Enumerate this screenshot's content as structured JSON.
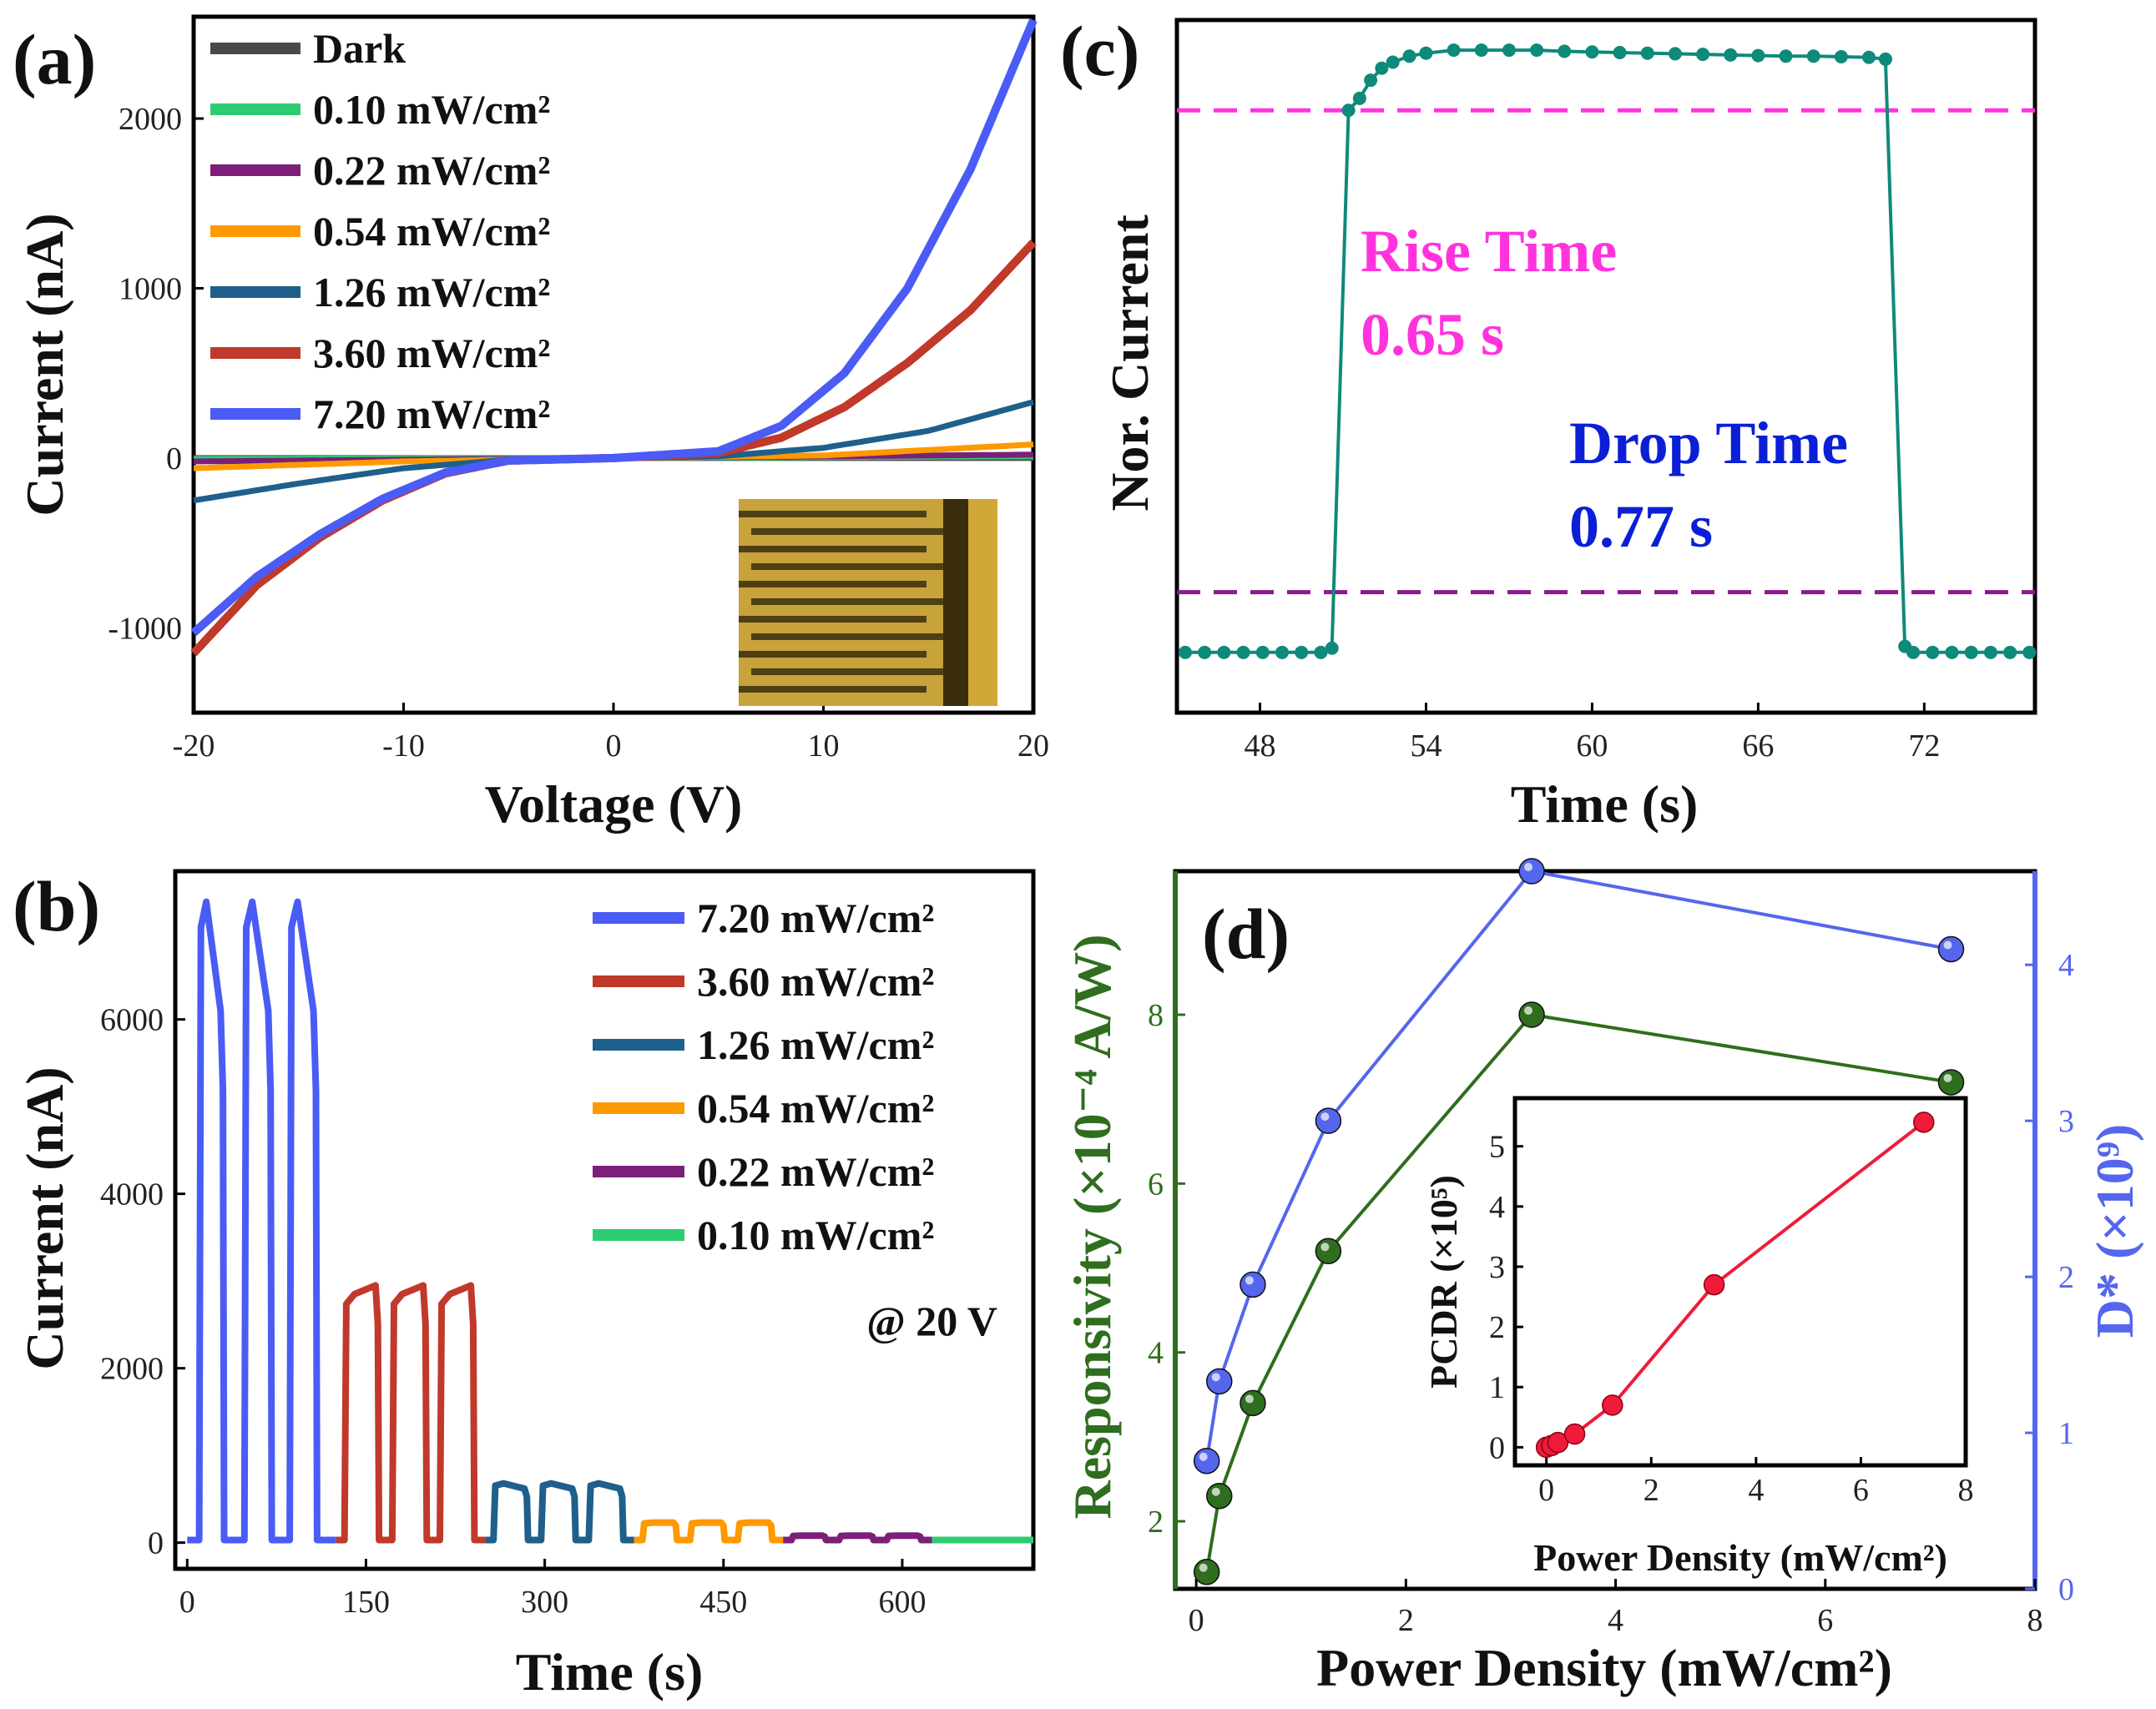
{
  "chart_data": [
    {
      "id": "a",
      "panel_label": "(a)",
      "type": "line",
      "xlabel": "Voltage (V)",
      "ylabel": "Current (nA)",
      "xlim": [
        -20,
        20
      ],
      "ylim": [
        -1500,
        2600
      ],
      "xticks": [
        "-20",
        "-10",
        "0",
        "10",
        "20"
      ],
      "yticks": [
        "-1000",
        "0",
        "1000",
        "2000"
      ],
      "legend": [
        {
          "label": "Dark",
          "color": "#4a4a4a"
        },
        {
          "label": "0.10 mW/cm²",
          "color": "#2ecc71"
        },
        {
          "label": "0.22 mW/cm²",
          "color": "#7b1f7a"
        },
        {
          "label": "0.54 mW/cm²",
          "color": "#ff9900"
        },
        {
          "label": "1.26 mW/cm²",
          "color": "#1f5f8b"
        },
        {
          "label": "3.60 mW/cm²",
          "color": "#c0392b"
        },
        {
          "label": "7.20 mW/cm²",
          "color": "#4a5cf5"
        }
      ],
      "series": [
        {
          "name": "Dark",
          "x": [
            -20,
            0,
            20
          ],
          "y": [
            0,
            0,
            0
          ]
        },
        {
          "name": "0.10 mW/cm²",
          "x": [
            -20,
            0,
            20
          ],
          "y": [
            -5,
            0,
            10
          ]
        },
        {
          "name": "0.22 mW/cm²",
          "x": [
            -20,
            0,
            20
          ],
          "y": [
            -20,
            0,
            20
          ]
        },
        {
          "name": "0.54 mW/cm²",
          "x": [
            -20,
            -10,
            0,
            10,
            20
          ],
          "y": [
            -60,
            -20,
            0,
            15,
            80
          ]
        },
        {
          "name": "1.26 mW/cm²",
          "x": [
            -20,
            -15,
            -10,
            -5,
            0,
            5,
            10,
            15,
            20
          ],
          "y": [
            -250,
            -150,
            -60,
            -10,
            0,
            10,
            60,
            160,
            330
          ]
        },
        {
          "name": "3.60 mW/cm²",
          "x": [
            -20,
            -17,
            -14,
            -11,
            -8,
            -5,
            0,
            5,
            8,
            11,
            14,
            17,
            20
          ],
          "y": [
            -1150,
            -750,
            -470,
            -250,
            -90,
            -15,
            0,
            30,
            120,
            300,
            560,
            870,
            1270
          ]
        },
        {
          "name": "7.20 mW/cm²",
          "x": [
            -20,
            -17,
            -14,
            -11,
            -8,
            -5,
            0,
            5,
            8,
            11,
            14,
            17,
            20
          ],
          "y": [
            -1030,
            -700,
            -450,
            -240,
            -85,
            -15,
            0,
            40,
            190,
            500,
            1000,
            1700,
            2580
          ]
        }
      ],
      "inset": "optical micrograph of interdigitated electrodes"
    },
    {
      "id": "b",
      "panel_label": "(b)",
      "type": "line",
      "xlabel": "Time (s)",
      "ylabel": "Current (nA)",
      "xlim": [
        -10,
        710
      ],
      "ylim": [
        -300,
        7700
      ],
      "xticks": [
        "0",
        "150",
        "300",
        "450",
        "600"
      ],
      "yticks": [
        "0",
        "2000",
        "4000",
        "6000"
      ],
      "annotation": "@ 20 V",
      "legend": [
        {
          "label": "7.20 mW/cm²",
          "color": "#4a5cf5"
        },
        {
          "label": "3.60 mW/cm²",
          "color": "#c0392b"
        },
        {
          "label": "1.26 mW/cm²",
          "color": "#1f5f8b"
        },
        {
          "label": "0.54 mW/cm²",
          "color": "#ff9900"
        },
        {
          "label": "0.22 mW/cm²",
          "color": "#7b1f7a"
        },
        {
          "label": "0.10 mW/cm²",
          "color": "#2ecc71"
        }
      ],
      "segments": [
        {
          "name": "7.20 mW/cm²",
          "t_start": 0,
          "t_end": 125,
          "on": [
            [
              10,
              30
            ],
            [
              48,
              70
            ],
            [
              86,
              108
            ]
          ],
          "peak": 7350,
          "end": 6100
        },
        {
          "name": "3.60 mW/cm²",
          "t_start": 125,
          "t_end": 250,
          "on": [
            [
              132,
              160
            ],
            [
              172,
              200
            ],
            [
              212,
              240
            ]
          ],
          "peak": 2850,
          "end": 2950
        },
        {
          "name": "1.26 mW/cm²",
          "t_start": 250,
          "t_end": 375,
          "on": [
            [
              257,
              285
            ],
            [
              297,
              325
            ],
            [
              337,
              365
            ]
          ],
          "peak": 680,
          "end": 620
        },
        {
          "name": "0.54 mW/cm²",
          "t_start": 375,
          "t_end": 500,
          "on": [
            [
              382,
              410
            ],
            [
              422,
              450
            ],
            [
              462,
              490
            ]
          ],
          "peak": 230,
          "end": 230
        },
        {
          "name": "0.22 mW/cm²",
          "t_start": 500,
          "t_end": 625,
          "on": [
            [
              507,
              535
            ],
            [
              547,
              575
            ],
            [
              587,
              615
            ]
          ],
          "peak": 80,
          "end": 80
        },
        {
          "name": "0.10 mW/cm²",
          "t_start": 625,
          "t_end": 710,
          "on": [],
          "peak": 30,
          "end": 30
        }
      ]
    },
    {
      "id": "c",
      "panel_label": "(c)",
      "type": "line",
      "xlabel": "Time (s)",
      "ylabel": "Nor. Current",
      "xlim": [
        45,
        76
      ],
      "ylim": [
        -0.1,
        1.05
      ],
      "xticks": [
        "48",
        "54",
        "60",
        "66",
        "72"
      ],
      "xtick_values": [
        48,
        54,
        60,
        66,
        72
      ],
      "series": [
        {
          "name": "normalized current",
          "color": "#0e8a7a",
          "x": [
            45.3,
            46,
            46.7,
            47.4,
            48.1,
            48.8,
            49.5,
            50.2,
            50.6,
            51.2,
            51.6,
            52,
            52.4,
            52.8,
            53.4,
            54,
            55,
            56,
            57,
            58,
            59,
            60,
            61,
            62,
            63,
            64,
            65,
            66,
            67,
            68,
            69,
            70,
            70.6,
            71.3,
            71.6,
            72.3,
            73,
            73.7,
            74.4,
            75.1,
            75.8
          ],
          "y": [
            0,
            0,
            0,
            0,
            0,
            0,
            0,
            0,
            0.007,
            0.9,
            0.92,
            0.95,
            0.97,
            0.98,
            0.99,
            0.995,
            1,
            1,
            1,
            1,
            0.998,
            0.997,
            0.996,
            0.995,
            0.994,
            0.993,
            0.992,
            0.991,
            0.99,
            0.99,
            0.989,
            0.988,
            0.985,
            0.01,
            0,
            0,
            0,
            0,
            0,
            0,
            0
          ]
        }
      ],
      "reference_lines": [
        {
          "name": "90% level",
          "y": 0.9,
          "color": "#ff33dd"
        },
        {
          "name": "10% level",
          "y": 0.1,
          "color": "#8b1a8b"
        }
      ],
      "annotations": {
        "rise_title": "Rise Time",
        "rise_value": "0.65 s",
        "drop_title": "Drop Time",
        "drop_value": "0.77 s"
      }
    },
    {
      "id": "d",
      "panel_label": "(d)",
      "type": "line",
      "xlabel": "Power Density (mW/cm²)",
      "ylabel_left": "Responsivity (×10⁻⁴ A/W)",
      "ylabel_right": "D* (×10⁹)",
      "xlim": [
        -0.2,
        8
      ],
      "ylim_left": [
        1.2,
        9.7
      ],
      "ylim_right": [
        0,
        4.6
      ],
      "xticks": [
        "0",
        "2",
        "4",
        "6",
        "8"
      ],
      "yticks_left": [
        "2",
        "4",
        "6",
        "8"
      ],
      "yticks_right": [
        "0",
        "1",
        "2",
        "3",
        "4"
      ],
      "series": [
        {
          "name": "Responsivity",
          "axis": "left",
          "color": "#2e6e1e",
          "x": [
            0.1,
            0.22,
            0.54,
            1.26,
            3.2,
            7.2
          ],
          "y": [
            1.4,
            2.3,
            3.4,
            5.2,
            8.0,
            7.2
          ]
        },
        {
          "name": "D*",
          "axis": "right",
          "color": "#5566ee",
          "x": [
            0.1,
            0.22,
            0.54,
            1.26,
            3.2,
            7.2
          ],
          "y": [
            0.82,
            1.33,
            1.95,
            3.0,
            4.6,
            4.1
          ]
        }
      ],
      "inset": {
        "type": "line",
        "xlabel": "Power Density (mW/cm²)",
        "ylabel": "PCDR (×10⁵)",
        "xlim": [
          -0.6,
          8
        ],
        "ylim": [
          -0.3,
          5.8
        ],
        "xticks": [
          "0",
          "2",
          "4",
          "6",
          "8"
        ],
        "yticks": [
          "0",
          "1",
          "2",
          "3",
          "4",
          "5"
        ],
        "series": [
          {
            "name": "PCDR",
            "color": "#ee1c3a",
            "x": [
              0,
              0.1,
              0.22,
              0.54,
              1.26,
              3.2,
              7.2
            ],
            "y": [
              0,
              0.03,
              0.08,
              0.22,
              0.7,
              2.7,
              5.4
            ]
          }
        ]
      }
    }
  ]
}
